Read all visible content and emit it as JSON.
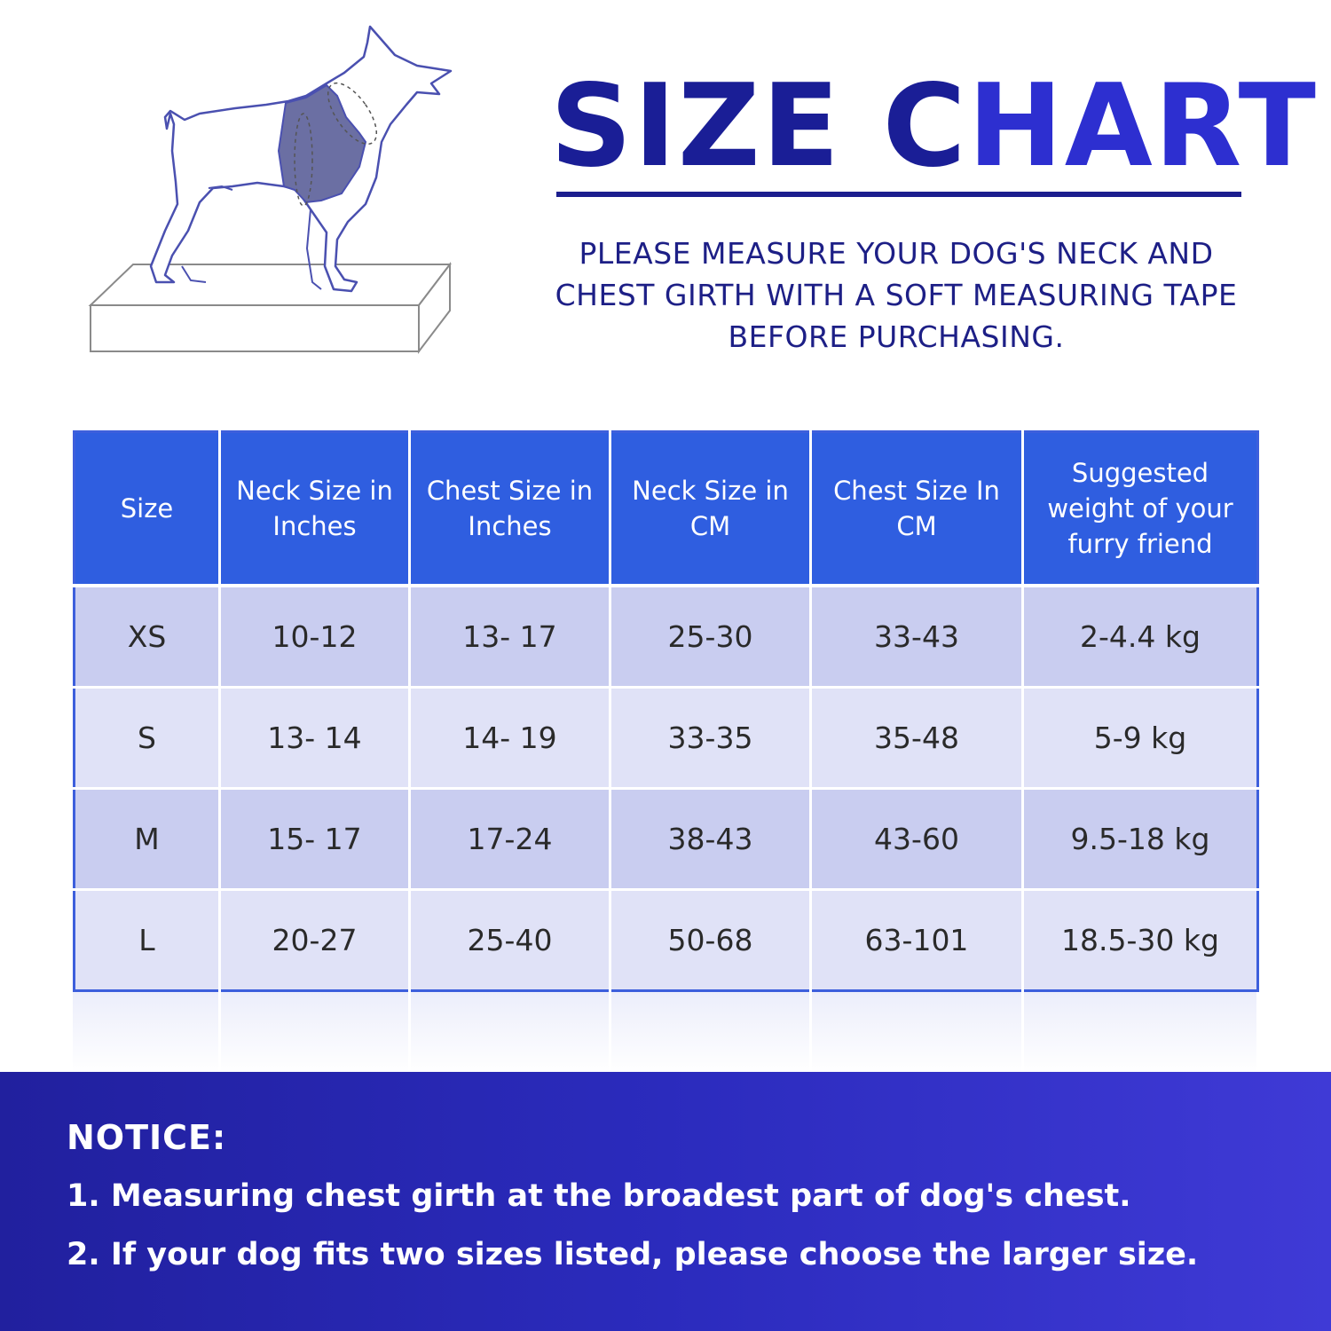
{
  "header": {
    "title_part1": "SIZE C",
    "title_part2": "HART",
    "instructions": [
      "PLEASE MEASURE YOUR DOG'S NECK AND",
      "CHEST GIRTH WITH A SOFT MEASURING TAPE",
      "BEFORE PURCHASING."
    ]
  },
  "illustration": {
    "icon": "dog-on-block-harness-icon"
  },
  "table": {
    "columns": [
      [
        "Size"
      ],
      [
        "Neck Size in",
        "Inches"
      ],
      [
        "Chest Size in",
        "Inches"
      ],
      [
        "Neck Size in",
        "CM"
      ],
      [
        "Chest Size In",
        "CM"
      ],
      [
        "Suggested",
        "weight of your",
        "furry friend"
      ]
    ],
    "rows": [
      [
        "XS",
        "10-12",
        "13- 17",
        "25-30",
        "33-43",
        "2-4.4 kg"
      ],
      [
        "S",
        "13- 14",
        "14- 19",
        "33-35",
        "35-48",
        "5-9 kg"
      ],
      [
        "M",
        "15- 17",
        "17-24",
        "38-43",
        "43-60",
        "9.5-18 kg"
      ],
      [
        "L",
        "20-27",
        "25-40",
        "50-68",
        "63-101",
        "18.5-30 kg"
      ]
    ]
  },
  "notice": {
    "title": "NOTICE:",
    "items": [
      "1. Measuring chest girth at the broadest part of dog's chest.",
      "2. If your dog fits two sizes listed, please choose the larger size."
    ]
  },
  "colors": {
    "header_blue": "#2f5ee0",
    "row_odd": "#c9cdf0",
    "row_even": "#e0e2f7",
    "title_dark": "#1a1e96",
    "title_bright": "#2d2fd0",
    "notice_start": "#21209e",
    "notice_end": "#3f3ad6"
  }
}
